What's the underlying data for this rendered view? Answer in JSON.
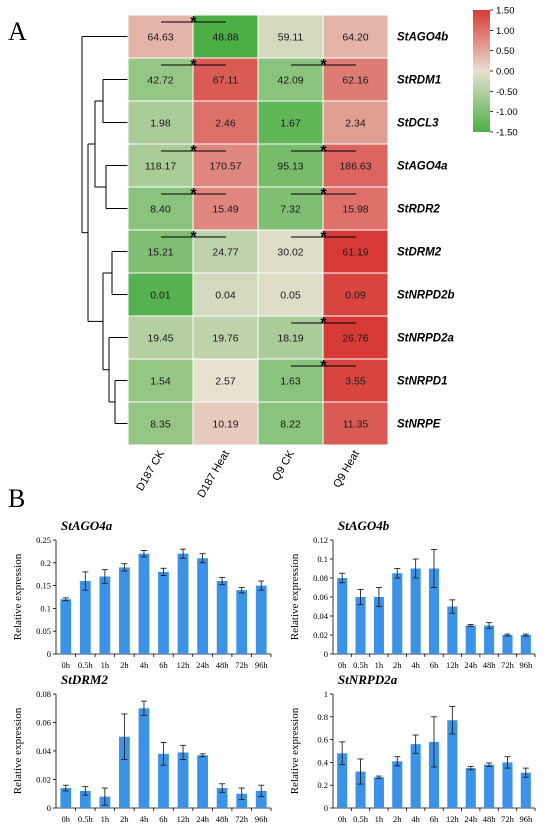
{
  "panel_labels": [
    "A",
    "B"
  ],
  "heatmap": {
    "genes": [
      "StAGO4b",
      "StRDM1",
      "StDCL3",
      "StAGO4a",
      "StRDR2",
      "StDRM2",
      "StNRPD2b",
      "StNRPD2a",
      "StNRPD1",
      "StNRPE"
    ],
    "columns": [
      "D187 CK",
      "D187 Heat",
      "Q9 CK",
      "Q9 Heat"
    ],
    "values": [
      [
        "64.63",
        "48.88",
        "59.11",
        "64.20"
      ],
      [
        "42.72",
        "67.11",
        "42.09",
        "62.16"
      ],
      [
        "1.98",
        "2.46",
        "1.67",
        "2.34"
      ],
      [
        "118.17",
        "170.57",
        "95.13",
        "186.63"
      ],
      [
        "8.40",
        "15.49",
        "7.32",
        "15.98"
      ],
      [
        "15.21",
        "24.77",
        "30.02",
        "61.19"
      ],
      [
        "0.01",
        "0.04",
        "0.05",
        "0.09"
      ],
      [
        "19.45",
        "19.76",
        "18.19",
        "26.76"
      ],
      [
        "1.54",
        "2.57",
        "1.63",
        "3.55"
      ],
      [
        "8.35",
        "10.19",
        "8.22",
        "11.35"
      ]
    ],
    "zscores": [
      [
        0.4,
        -1.5,
        -0.2,
        0.4
      ],
      [
        -0.8,
        1.2,
        -0.9,
        0.9
      ],
      [
        -0.6,
        1.0,
        -1.3,
        0.6
      ],
      [
        -0.6,
        0.8,
        -1.1,
        1.1
      ],
      [
        -0.9,
        0.8,
        -1.0,
        1.0
      ],
      [
        -1.0,
        -0.4,
        -0.1,
        1.5
      ],
      [
        -1.4,
        -0.2,
        -0.1,
        1.4
      ],
      [
        -0.5,
        -0.4,
        -0.6,
        1.5
      ],
      [
        -0.8,
        0.0,
        -0.9,
        1.4
      ],
      [
        -0.8,
        0.2,
        -0.9,
        1.2
      ]
    ],
    "significance": [
      {
        "row": 0,
        "pair": "D187",
        "star": "*"
      },
      {
        "row": 1,
        "pair": "D187",
        "star": "*"
      },
      {
        "row": 1,
        "pair": "Q9",
        "star": "*"
      },
      {
        "row": 3,
        "pair": "D187",
        "star": "*"
      },
      {
        "row": 3,
        "pair": "Q9",
        "star": "*"
      },
      {
        "row": 4,
        "pair": "D187",
        "star": "*"
      },
      {
        "row": 4,
        "pair": "Q9",
        "star": "*"
      },
      {
        "row": 5,
        "pair": "D187",
        "star": "*"
      },
      {
        "row": 5,
        "pair": "Q9",
        "star": "*"
      },
      {
        "row": 7,
        "pair": "Q9",
        "star": "*"
      },
      {
        "row": 8,
        "pair": "Q9",
        "star": "*"
      }
    ],
    "colorbar": {
      "ticks": [
        "1.50",
        "1.00",
        "0.50",
        "0.00",
        "-0.50",
        "-1.00",
        "-1.50"
      ],
      "low_color": "#4caf45",
      "mid_color": "#e8e0d0",
      "high_color": "#d73a36"
    }
  },
  "chart_data": [
    {
      "type": "bar",
      "title": "StAGO4a",
      "ylabel": "Relative expression",
      "categories": [
        "0h",
        "0.5h",
        "1h",
        "2h",
        "4h",
        "6h",
        "12h",
        "24h",
        "48h",
        "72h",
        "96h"
      ],
      "values": [
        0.12,
        0.16,
        0.17,
        0.19,
        0.22,
        0.18,
        0.22,
        0.21,
        0.16,
        0.14,
        0.15
      ],
      "errors": [
        0.003,
        0.02,
        0.015,
        0.008,
        0.007,
        0.008,
        0.01,
        0.01,
        0.008,
        0.006,
        0.01
      ],
      "ylim": [
        0,
        0.25
      ],
      "yticks": [
        "0",
        "0.05",
        "0.1",
        "0.15",
        "0.2",
        "0.25"
      ],
      "color": "#3c92e6"
    },
    {
      "type": "bar",
      "title": "StAGO4b",
      "ylabel": "Relative expression",
      "categories": [
        "0h",
        "0.5h",
        "1h",
        "2h",
        "4h",
        "6h",
        "12h",
        "24h",
        "48h",
        "72h",
        "96h"
      ],
      "values": [
        0.08,
        0.06,
        0.06,
        0.085,
        0.09,
        0.09,
        0.05,
        0.03,
        0.03,
        0.02,
        0.02
      ],
      "errors": [
        0.005,
        0.008,
        0.01,
        0.005,
        0.01,
        0.02,
        0.007,
        0.001,
        0.003,
        0.001,
        0.001
      ],
      "ylim": [
        0,
        0.12
      ],
      "yticks": [
        "0",
        "0.02",
        "0.04",
        "0.06",
        "0.08",
        "0.1",
        "0.12"
      ],
      "color": "#3c92e6"
    },
    {
      "type": "bar",
      "title": "StDRM2",
      "ylabel": "Relative expression",
      "categories": [
        "0h",
        "0.5h",
        "1h",
        "2h",
        "4h",
        "6h",
        "12h",
        "24h",
        "48h",
        "72h",
        "96h"
      ],
      "values": [
        0.014,
        0.012,
        0.008,
        0.05,
        0.07,
        0.038,
        0.039,
        0.037,
        0.014,
        0.01,
        0.012
      ],
      "errors": [
        0.002,
        0.003,
        0.006,
        0.016,
        0.005,
        0.008,
        0.005,
        0.001,
        0.003,
        0.004,
        0.004
      ],
      "ylim": [
        0,
        0.08
      ],
      "yticks": [
        "0",
        "0.02",
        "0.04",
        "0.06",
        "0.08"
      ],
      "color": "#3c92e6"
    },
    {
      "type": "bar",
      "title": "StNRPD2a",
      "ylabel": "Relative expression",
      "categories": [
        "0h",
        "0.5h",
        "1h",
        "2h",
        "4h",
        "6h",
        "12h",
        "24h",
        "48h",
        "72h",
        "96h"
      ],
      "values": [
        0.48,
        0.32,
        0.27,
        0.41,
        0.56,
        0.58,
        0.77,
        0.35,
        0.38,
        0.4,
        0.31
      ],
      "errors": [
        0.1,
        0.11,
        0.01,
        0.04,
        0.08,
        0.22,
        0.12,
        0.015,
        0.015,
        0.05,
        0.04
      ],
      "ylim": [
        0,
        1
      ],
      "yticks": [
        "0",
        "0.2",
        "0.4",
        "0.6",
        "0.8",
        "1"
      ],
      "color": "#3c92e6"
    }
  ]
}
